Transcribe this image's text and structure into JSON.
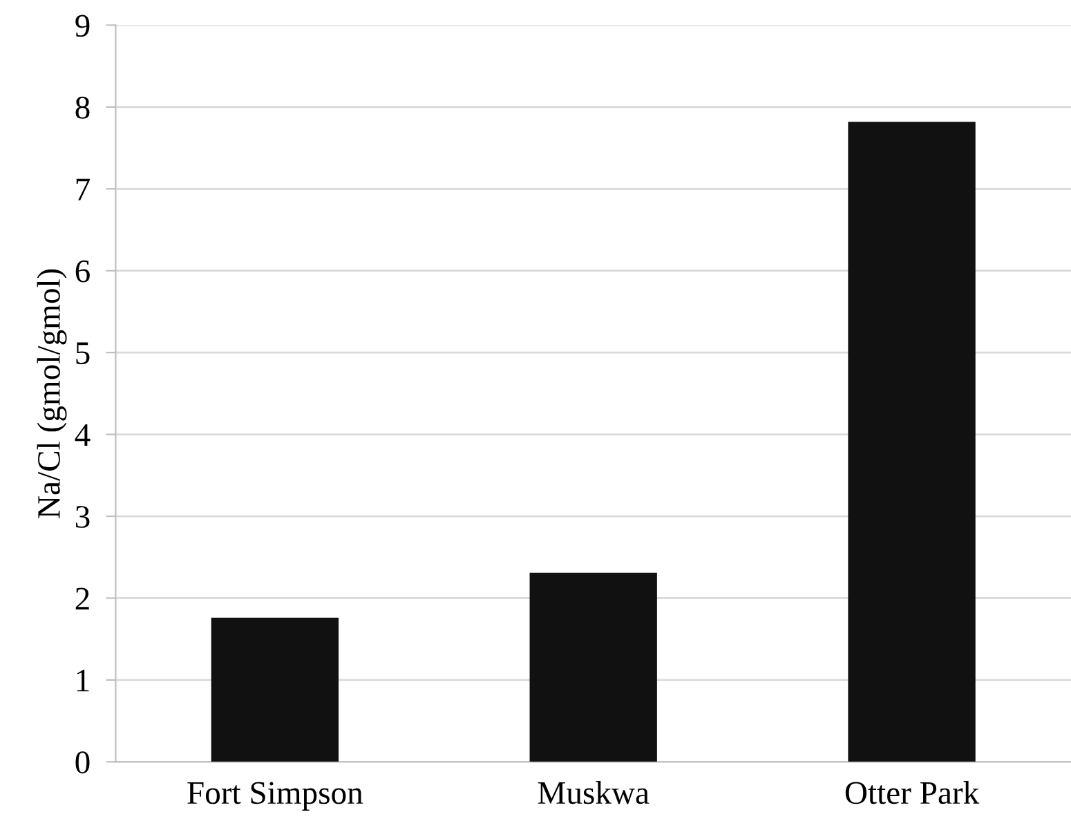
{
  "chart_data": {
    "type": "bar",
    "ylabel": "Na/Cl (gmol/gmol)",
    "categories": [
      "Fort Simpson",
      "Muskwa",
      "Otter Park"
    ],
    "values": [
      1.76,
      2.31,
      7.82
    ],
    "color": "#111111",
    "ylim": [
      0,
      9
    ],
    "yticks": [
      0,
      1,
      2,
      3,
      4,
      5,
      6,
      7,
      8,
      9
    ],
    "grid": "y",
    "legend": false
  }
}
